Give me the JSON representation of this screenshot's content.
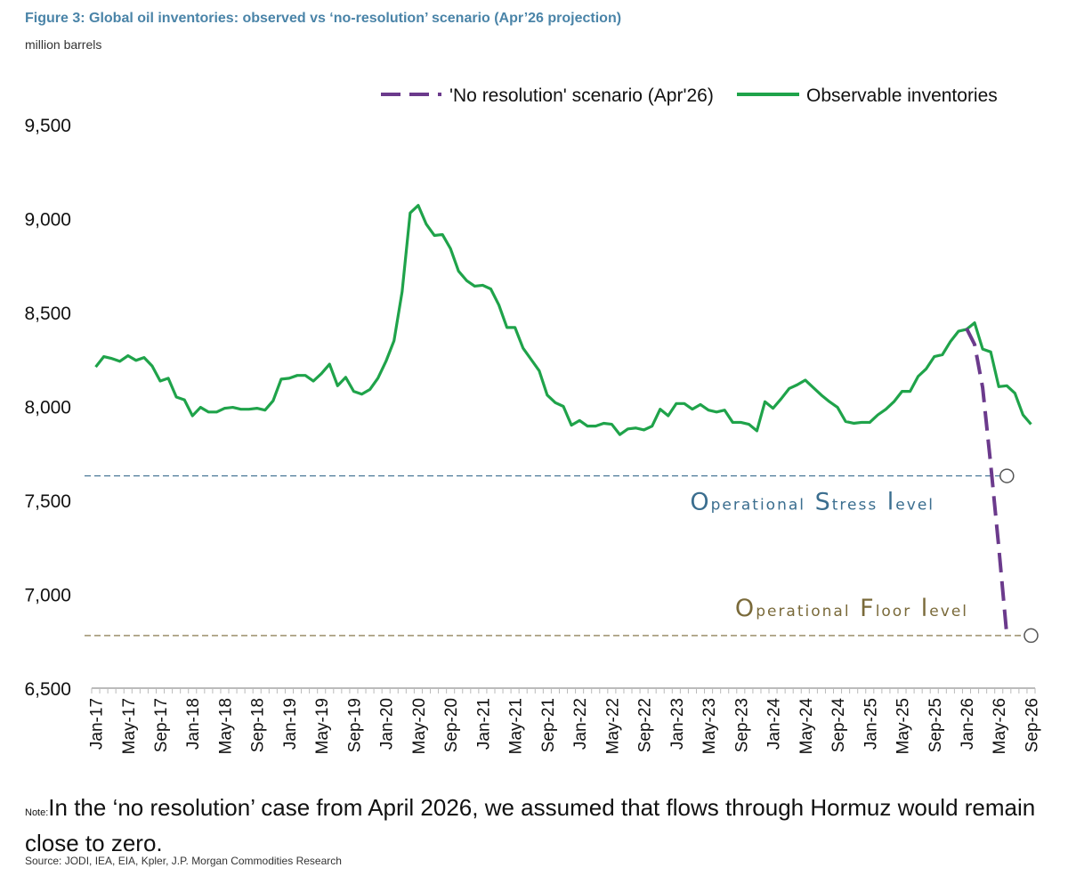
{
  "header": {
    "title": "Figure 3: Global oil inventories: observed vs ‘no-resolution’ scenario (Apr’26 projection)",
    "subtitle": "million barrels"
  },
  "footer": {
    "note_label": "Note:",
    "note_text": "In the ‘no resolution’ case from April 2026, we assumed that flows through Hormuz would remain close to zero.",
    "source": "Source: JODI, IEA, EIA, Kpler, J.P. Morgan Commodities Research"
  },
  "colors": {
    "observed": "#1fa34a",
    "scenario": "#6b3a8c",
    "stress": "#3b6e8f",
    "floor": "#7a6a3a",
    "axis": "#bbbbbb"
  },
  "chart_data": {
    "type": "line",
    "ylim": [
      6500,
      9500
    ],
    "yticks": [
      6500,
      7000,
      7500,
      8000,
      8500,
      9000,
      9500
    ],
    "ytick_labels": [
      "6,500",
      "7,000",
      "7,500",
      "8,000",
      "8,500",
      "9,000",
      "9,500"
    ],
    "x_start": "2017-01",
    "x_end": "2026-10",
    "xtick_labels": [
      "Jan-17",
      "May-17",
      "Sep-17",
      "Jan-18",
      "May-18",
      "Sep-18",
      "Jan-19",
      "May-19",
      "Sep-19",
      "Jan-20",
      "May-20",
      "Sep-20",
      "Jan-21",
      "May-21",
      "Sep-21",
      "Jan-22",
      "May-22",
      "Sep-22",
      "Jan-23",
      "May-23",
      "Sep-23",
      "Jan-24",
      "May-24",
      "Sep-24",
      "Jan-25",
      "May-25",
      "Sep-25",
      "Jan-26",
      "May-26",
      "Sep-26"
    ],
    "legend_position": "top-right",
    "series": [
      {
        "name": "Observable inventories",
        "style": "solid",
        "start": "2017-01",
        "values": [
          8210,
          8265,
          8255,
          8240,
          8270,
          8245,
          8260,
          8215,
          8135,
          8150,
          8050,
          8035,
          7950,
          7995,
          7970,
          7970,
          7990,
          7995,
          7985,
          7985,
          7990,
          7980,
          8030,
          8145,
          8150,
          8165,
          8165,
          8135,
          8175,
          8225,
          8110,
          8155,
          8080,
          8065,
          8090,
          8150,
          8240,
          8350,
          8610,
          9030,
          9070,
          8970,
          8910,
          8915,
          8840,
          8720,
          8670,
          8640,
          8645,
          8625,
          8540,
          8420,
          8420,
          8310,
          8250,
          8190,
          8060,
          8020,
          8000,
          7900,
          7925,
          7895,
          7895,
          7910,
          7905,
          7850,
          7880,
          7885,
          7875,
          7895,
          7985,
          7950,
          8015,
          8015,
          7985,
          8010,
          7980,
          7970,
          7980,
          7915,
          7915,
          7905,
          7870,
          8025,
          7990,
          8040,
          8095,
          8115,
          8140,
          8100,
          8060,
          8025,
          7995,
          7920,
          7910,
          7915,
          7915,
          7955,
          7985,
          8025,
          8080,
          8080,
          8160,
          8200,
          8265,
          8275,
          8345,
          8400,
          8410,
          8445,
          8305,
          8290,
          8105,
          8110,
          8070,
          7955,
          7905
        ]
      },
      {
        "name": "'No resolution' scenario (Apr'26)",
        "style": "dashed",
        "start": "2026-01",
        "values": [
          8415,
          8330,
          8100,
          7690,
          7250,
          6780
        ]
      }
    ],
    "reference_lines": [
      {
        "name": "Operational Stress level",
        "value": 7630,
        "end_x": "2026-06",
        "marker": true
      },
      {
        "name": "Operational Floor level",
        "value": 6780,
        "end_x": "2026-09",
        "marker": true
      }
    ]
  }
}
